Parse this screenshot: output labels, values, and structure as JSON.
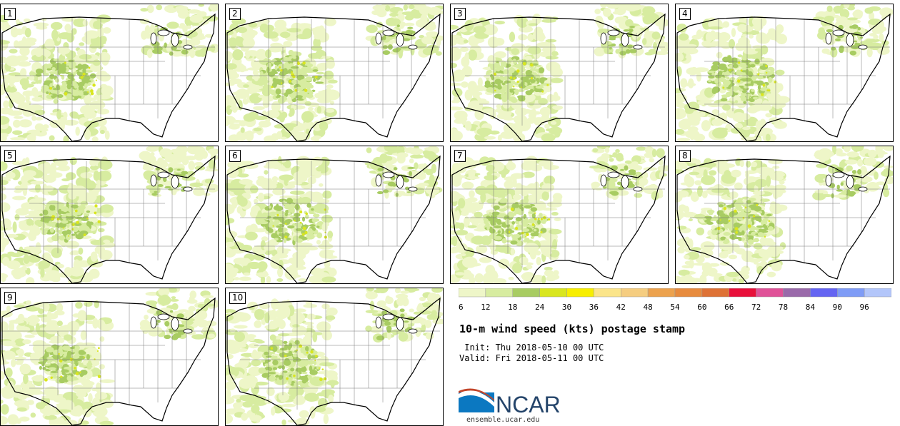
{
  "panels": [
    {
      "label": "1",
      "seed": 11,
      "core": 0.95
    },
    {
      "label": "2",
      "seed": 23,
      "core": 1.05
    },
    {
      "label": "3",
      "seed": 37,
      "core": 1.0
    },
    {
      "label": "4",
      "seed": 41,
      "core": 1.1
    },
    {
      "label": "5",
      "seed": 53,
      "core": 0.9
    },
    {
      "label": "6",
      "seed": 67,
      "core": 1.0
    },
    {
      "label": "7",
      "seed": 71,
      "core": 1.05
    },
    {
      "label": "8",
      "seed": 83,
      "core": 1.1
    },
    {
      "label": "9",
      "seed": 97,
      "core": 0.85
    },
    {
      "label": "10",
      "seed": 101,
      "core": 1.0
    }
  ],
  "legend": {
    "ticks": [
      "6",
      "12",
      "18",
      "24",
      "30",
      "36",
      "42",
      "48",
      "54",
      "60",
      "66",
      "72",
      "78",
      "84",
      "90",
      "96"
    ],
    "colors": [
      "#eef6c8",
      "#d7eca0",
      "#a8cc62",
      "#d9e61f",
      "#f7ee00",
      "#fbe58a",
      "#f5cd80",
      "#eca24e",
      "#e78b3e",
      "#de7236",
      "#e8103a",
      "#e05298",
      "#9a6aaa",
      "#6565f2",
      "#7f9cf6",
      "#b3c6fa"
    ]
  },
  "title": "10-m wind speed (kts) postage stamp",
  "init": " Init: Thu 2018-05-10 00 UTC",
  "valid": "Valid: Fri 2018-05-11 00 UTC",
  "logo_text": "NCAR",
  "site": "ensemble.ucar.edu",
  "colors": {
    "light": "#eef6c8",
    "mid": "#d7eca0",
    "dark": "#a8cc62",
    "yellow": "#d9e61f"
  }
}
